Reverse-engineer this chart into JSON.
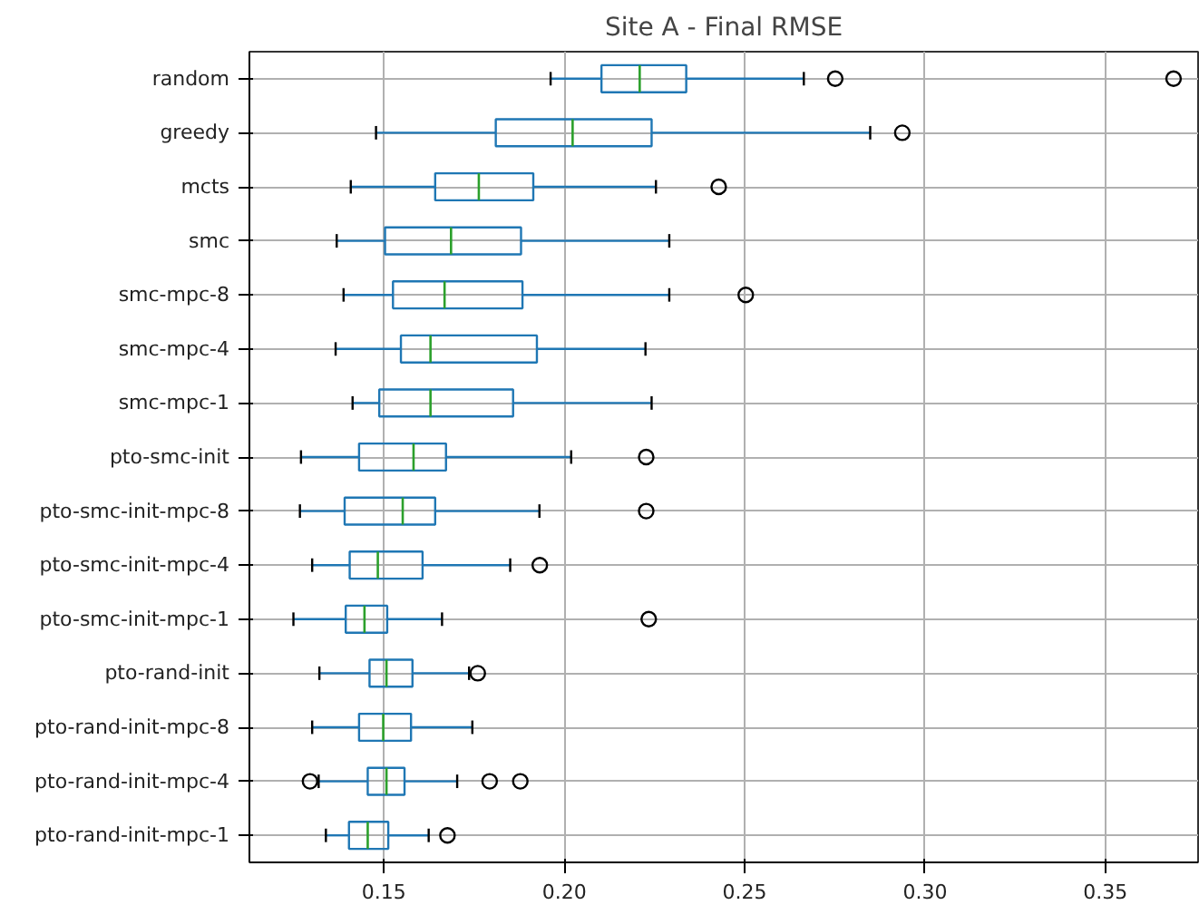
{
  "chart_data": {
    "type": "box",
    "orientation": "horizontal",
    "title": "Site A - Final RMSE",
    "categories": [
      "random",
      "greedy",
      "mcts",
      "smc",
      "smc-mpc-8",
      "smc-mpc-4",
      "smc-mpc-1",
      "pto-smc-init",
      "pto-smc-init-mpc-8",
      "pto-smc-init-mpc-4",
      "pto-smc-init-mpc-1",
      "pto-rand-init",
      "pto-rand-init-mpc-8",
      "pto-rand-init-mpc-4",
      "pto-rand-init-mpc-1"
    ],
    "boxes": [
      {
        "low": 0.1962,
        "q1": 0.2103,
        "median": 0.2209,
        "q3": 0.2338,
        "high": 0.2664,
        "outliers": [
          0.2751,
          0.3689
        ]
      },
      {
        "low": 0.1478,
        "q1": 0.181,
        "median": 0.2023,
        "q3": 0.2242,
        "high": 0.2848,
        "outliers": [
          0.2937
        ]
      },
      {
        "low": 0.1408,
        "q1": 0.1642,
        "median": 0.1763,
        "q3": 0.1914,
        "high": 0.2254,
        "outliers": [
          0.2428
        ]
      },
      {
        "low": 0.1369,
        "q1": 0.1503,
        "median": 0.1686,
        "q3": 0.188,
        "high": 0.2291
      },
      {
        "low": 0.1388,
        "q1": 0.1525,
        "median": 0.1668,
        "q3": 0.1884,
        "high": 0.2291,
        "outliers": [
          0.2503
        ]
      },
      {
        "low": 0.1366,
        "q1": 0.1547,
        "median": 0.1629,
        "q3": 0.1924,
        "high": 0.2225
      },
      {
        "low": 0.1413,
        "q1": 0.1487,
        "median": 0.1629,
        "q3": 0.1858,
        "high": 0.2242
      },
      {
        "low": 0.127,
        "q1": 0.1431,
        "median": 0.1582,
        "q3": 0.1672,
        "high": 0.2019,
        "outliers": [
          0.2227
        ]
      },
      {
        "low": 0.1267,
        "q1": 0.1391,
        "median": 0.1552,
        "q3": 0.1642,
        "high": 0.1931,
        "outliers": [
          0.2227
        ]
      },
      {
        "low": 0.1301,
        "q1": 0.1405,
        "median": 0.1483,
        "q3": 0.1607,
        "high": 0.185,
        "outliers": [
          0.1932
        ]
      },
      {
        "low": 0.1249,
        "q1": 0.1394,
        "median": 0.1446,
        "q3": 0.1509,
        "high": 0.1661,
        "outliers": [
          0.2234
        ]
      },
      {
        "low": 0.1321,
        "q1": 0.146,
        "median": 0.1507,
        "q3": 0.1579,
        "high": 0.1736,
        "outliers": [
          0.176
        ]
      },
      {
        "low": 0.1301,
        "q1": 0.1431,
        "median": 0.1498,
        "q3": 0.1575,
        "high": 0.1745
      },
      {
        "low": 0.1319,
        "q1": 0.1455,
        "median": 0.1507,
        "q3": 0.1557,
        "high": 0.1703,
        "outliers": [
          0.1295,
          0.1793,
          0.1878
        ]
      },
      {
        "low": 0.1339,
        "q1": 0.1403,
        "median": 0.1455,
        "q3": 0.1512,
        "high": 0.1624,
        "outliers": [
          0.1676
        ]
      }
    ],
    "xlim": [
      0.1127,
      0.3757
    ],
    "xticks": [
      {
        "value": 0.15,
        "label": "0.15"
      },
      {
        "value": 0.2,
        "label": "0.20"
      },
      {
        "value": 0.25,
        "label": "0.25"
      },
      {
        "value": 0.3,
        "label": "0.30"
      },
      {
        "value": 0.35,
        "label": "0.35"
      }
    ],
    "grid": true
  }
}
